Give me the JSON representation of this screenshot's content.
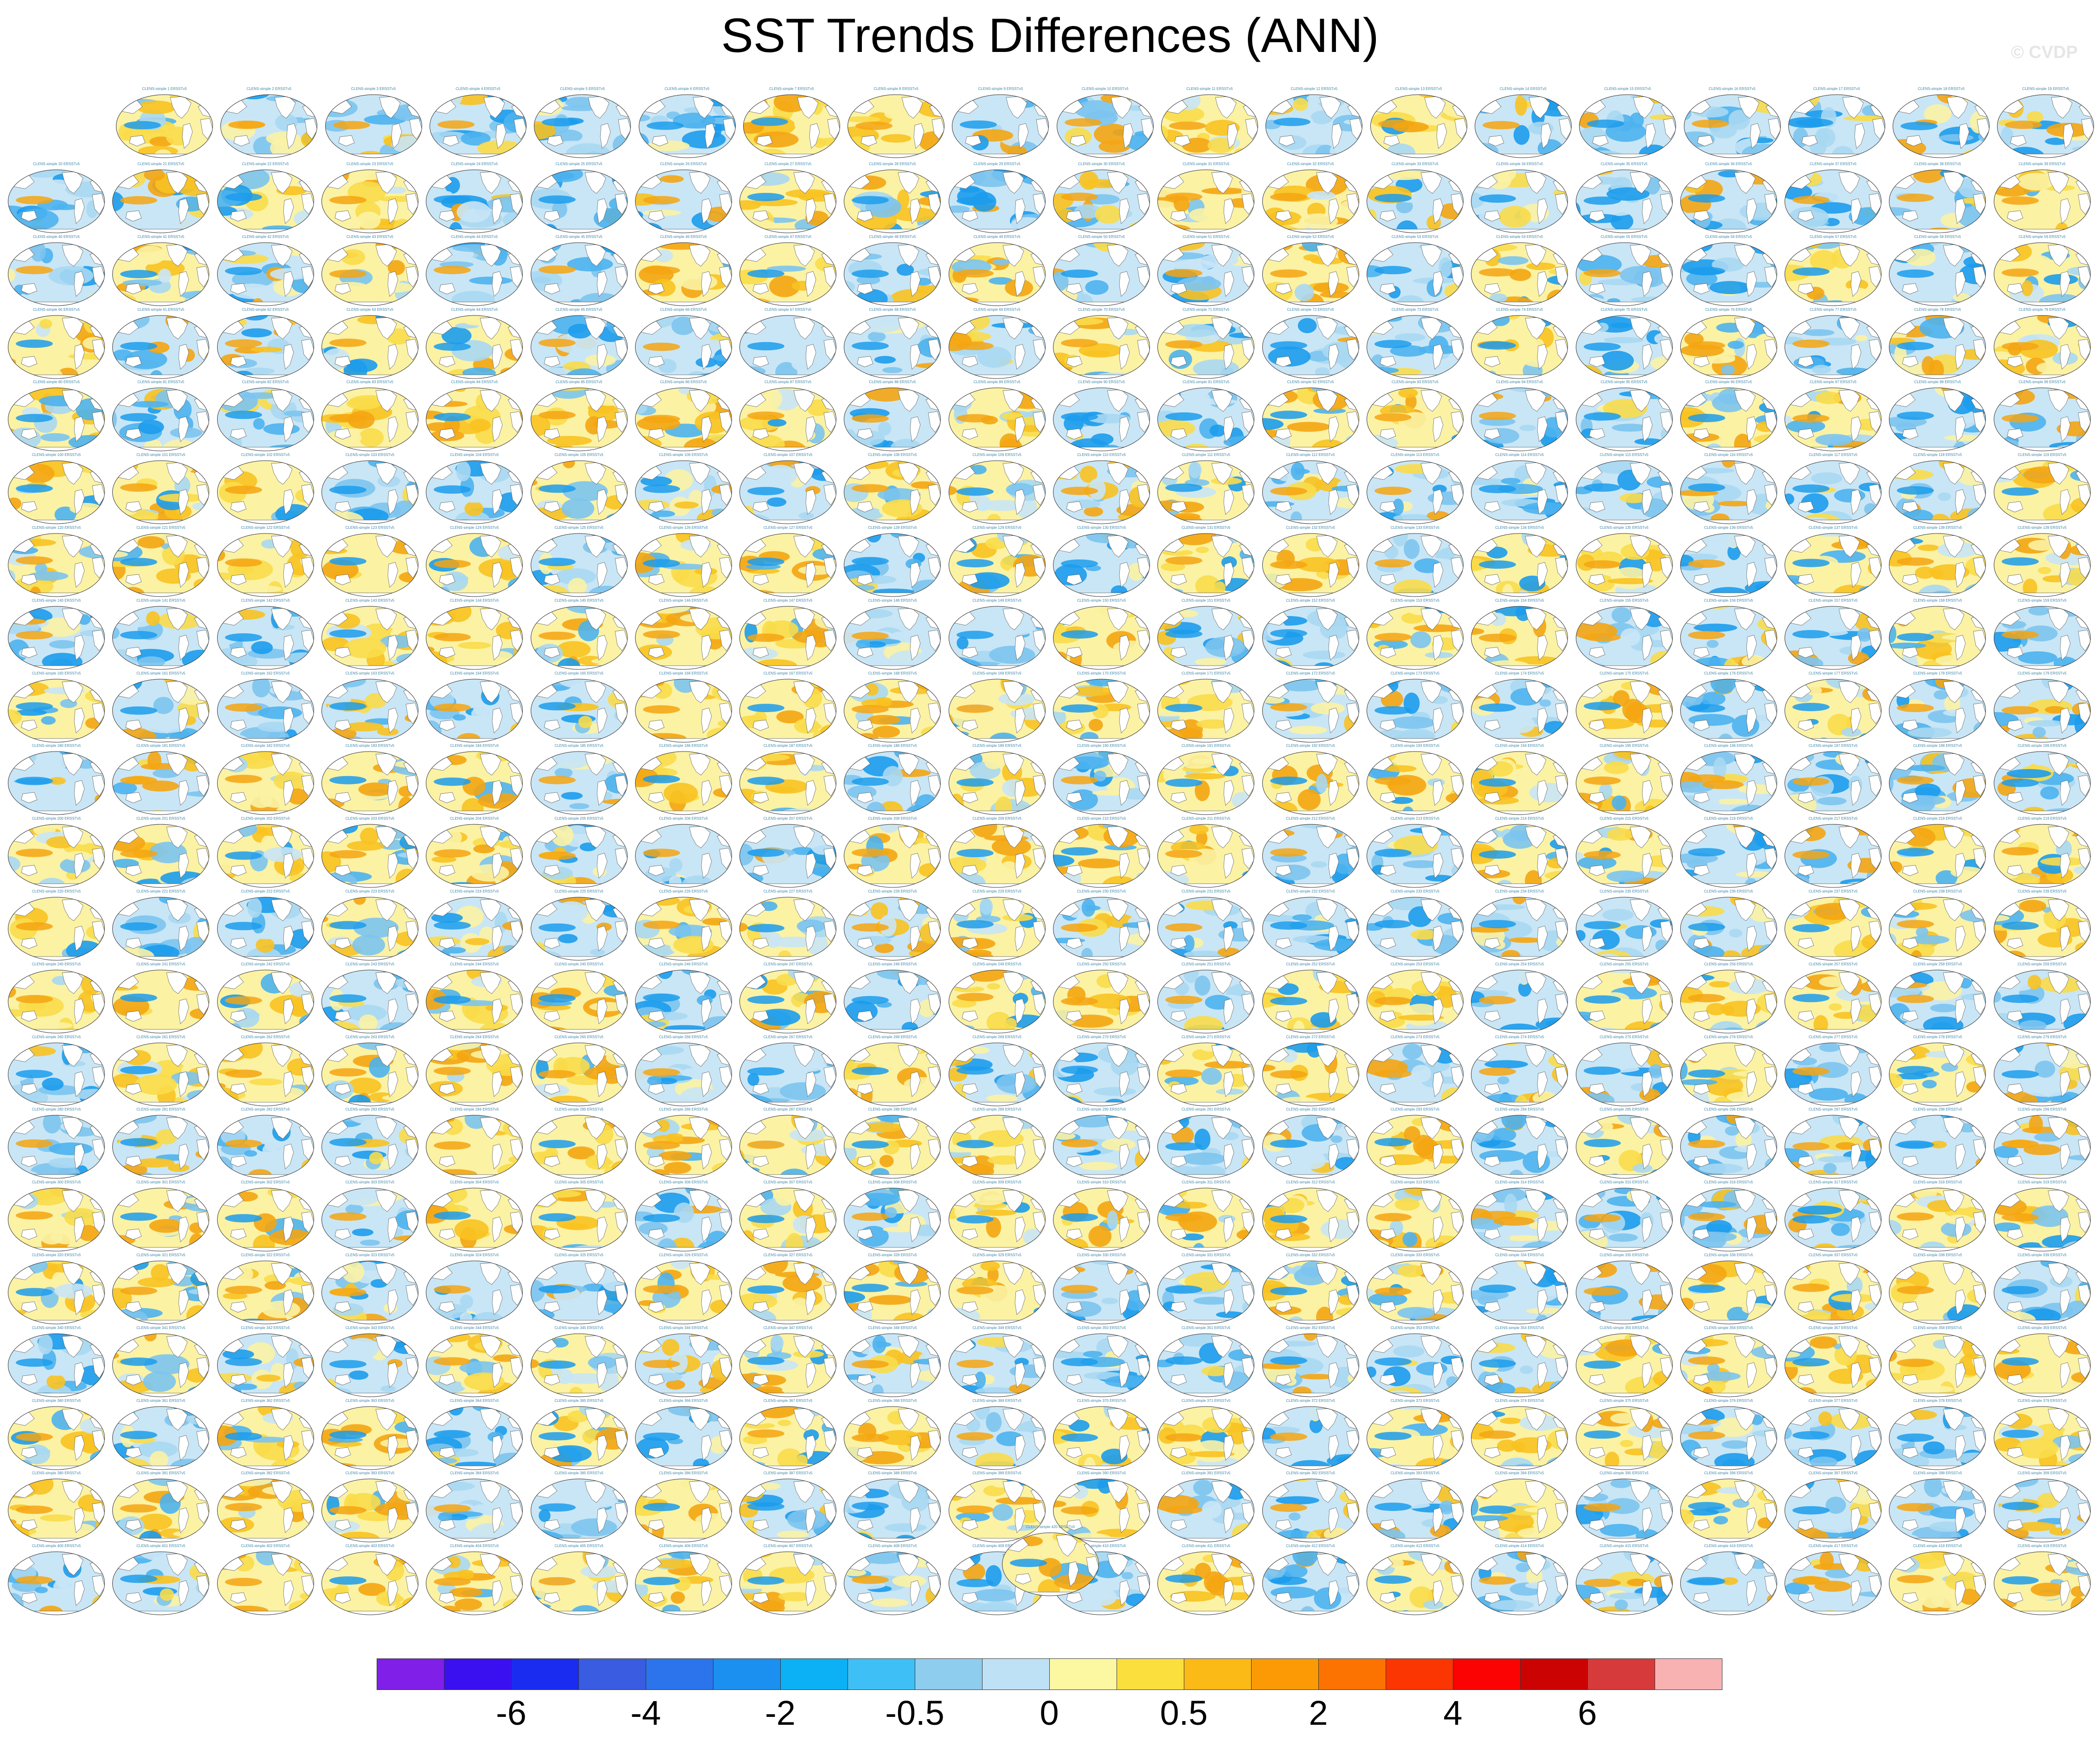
{
  "title": "SST Trends Differences (ANN)",
  "watermark": "© CVDP",
  "colors": {
    "background": "#ffffff",
    "panel_title": "#3b86a8",
    "land": "#ffffff",
    "coast": "#555555"
  },
  "colorbar": {
    "colors": [
      "#7f1fe8",
      "#3a10f0",
      "#1a2cf0",
      "#3a5ce0",
      "#2b74ec",
      "#1c90f0",
      "#0cb0f4",
      "#3ec0f6",
      "#8fcdee",
      "#bfe1f6",
      "#fcf7a1",
      "#fbdf3c",
      "#fbba16",
      "#fb9a05",
      "#fc7302",
      "#fc3602",
      "#fb0303",
      "#cc0303",
      "#d63a3a",
      "#f9b2b2"
    ],
    "labels": [
      "-6",
      "-4",
      "-2",
      "-0.5",
      "0",
      "0.5",
      "2",
      "4",
      "6"
    ]
  },
  "chart_data": {
    "type": "heatmap",
    "title": "SST Trends Differences (ANN)",
    "description_of_layout": "Grid of global SST trend-difference maps: 19 panels in the first row, 20 rows of 20 panels below, and 1 final panel centered at the bottom.",
    "panel_count": 420,
    "panel_labels": "CLENS-simple N ERSSTv5 (small, mostly illegible panel titles)",
    "colorbar_levels": [
      "-6",
      "-4",
      "-2",
      "-0.5",
      "0",
      "0.5",
      "2",
      "4",
      "6"
    ],
    "colormap": "blue (negative) to yellow/orange/red (positive)"
  }
}
